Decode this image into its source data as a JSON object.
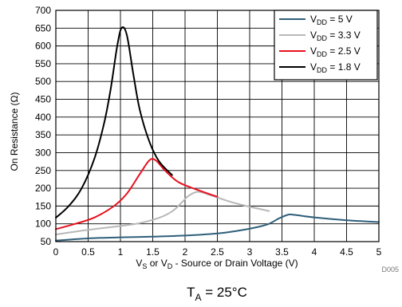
{
  "chart_data": {
    "type": "line",
    "xlabel": {
      "a": "V",
      "a_sub": "S",
      "b": " or V",
      "b_sub": "D",
      "c": " - Source or Drain Voltage (V)"
    },
    "ylabel": "On Resistance (Ω)",
    "xlim": [
      0,
      5
    ],
    "ylim": [
      50,
      700
    ],
    "x_ticks": [
      "0",
      "0.5",
      "1",
      "1.5",
      "2",
      "2.5",
      "3",
      "3.5",
      "4",
      "4.5",
      "5"
    ],
    "y_ticks": [
      "50",
      "100",
      "150",
      "200",
      "250",
      "300",
      "350",
      "400",
      "450",
      "500",
      "550",
      "600",
      "650",
      "700"
    ],
    "grid": true,
    "legend_position": "top-right",
    "series": [
      {
        "name": {
          "v": "V",
          "sub": "DD",
          "eq": " =  5 V"
        },
        "color": "#2f5f7a",
        "points": [
          [
            0,
            53
          ],
          [
            0.5,
            59
          ],
          [
            1,
            62
          ],
          [
            1.5,
            64
          ],
          [
            2,
            67
          ],
          [
            2.5,
            73
          ],
          [
            2.8,
            80
          ],
          [
            3.1,
            90
          ],
          [
            3.3,
            100
          ],
          [
            3.45,
            115
          ],
          [
            3.6,
            126
          ],
          [
            3.7,
            125
          ],
          [
            4,
            118
          ],
          [
            4.5,
            110
          ],
          [
            5,
            105
          ]
        ]
      },
      {
        "name": {
          "v": "V",
          "sub": "DD",
          "eq": " =  3.3 V"
        },
        "color": "#b8b8b8",
        "points": [
          [
            0,
            70
          ],
          [
            0.5,
            83
          ],
          [
            1,
            94
          ],
          [
            1.3,
            102
          ],
          [
            1.6,
            117
          ],
          [
            1.8,
            135
          ],
          [
            1.95,
            160
          ],
          [
            2.05,
            178
          ],
          [
            2.2,
            190
          ],
          [
            2.4,
            180
          ],
          [
            2.7,
            162
          ],
          [
            3,
            148
          ],
          [
            3.3,
            136
          ]
        ]
      },
      {
        "name": {
          "v": "V",
          "sub": "DD",
          "eq": " =  2.5 V"
        },
        "color": "#e8101e",
        "points": [
          [
            0,
            85
          ],
          [
            0.3,
            100
          ],
          [
            0.6,
            118
          ],
          [
            0.9,
            150
          ],
          [
            1.1,
            185
          ],
          [
            1.3,
            240
          ],
          [
            1.45,
            279
          ],
          [
            1.55,
            278
          ],
          [
            1.7,
            248
          ],
          [
            1.9,
            217
          ],
          [
            2.2,
            195
          ],
          [
            2.5,
            176
          ]
        ]
      },
      {
        "name": {
          "v": "V",
          "sub": "DD",
          "eq": " =  1.8 V"
        },
        "color": "#000000",
        "points": [
          [
            0,
            117
          ],
          [
            0.2,
            150
          ],
          [
            0.4,
            200
          ],
          [
            0.6,
            285
          ],
          [
            0.75,
            385
          ],
          [
            0.85,
            480
          ],
          [
            0.95,
            600
          ],
          [
            1.02,
            651
          ],
          [
            1.1,
            630
          ],
          [
            1.2,
            520
          ],
          [
            1.3,
            420
          ],
          [
            1.45,
            330
          ],
          [
            1.6,
            275
          ],
          [
            1.8,
            237
          ]
        ]
      }
    ],
    "watermark": "D005",
    "condition": {
      "t": "T",
      "sub": "A",
      "rest": " = 25°C"
    }
  }
}
